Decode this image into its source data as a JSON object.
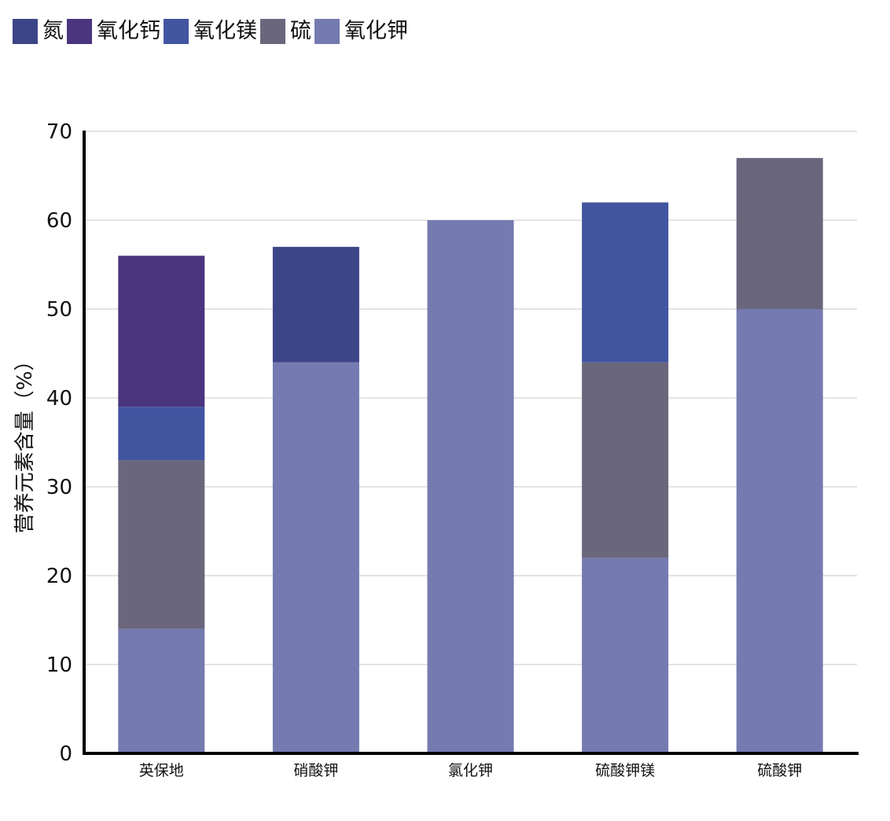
{
  "chart_data": {
    "type": "bar",
    "stacked": true,
    "title": "",
    "xlabel": "",
    "ylabel": "营养元素含量（%）",
    "ylim": [
      0,
      70
    ],
    "yticks": [
      0,
      10,
      20,
      30,
      40,
      50,
      60,
      70
    ],
    "grid": true,
    "legend_position": "top-left",
    "categories": [
      "英保地",
      "硝酸钾",
      "氯化钾",
      "硫酸钾镁",
      "硫酸钾"
    ],
    "series": [
      {
        "name": "氮",
        "color": "#3d4589",
        "values": [
          0,
          13,
          0,
          0,
          0
        ]
      },
      {
        "name": "氧化钙",
        "color": "#4b357f",
        "values": [
          17,
          0,
          0,
          0,
          0
        ]
      },
      {
        "name": "氧化镁",
        "color": "#4255a1",
        "values": [
          6,
          0,
          0,
          18,
          0
        ]
      },
      {
        "name": "硫",
        "color": "#6a677d",
        "values": [
          19,
          0,
          0,
          22,
          17
        ]
      },
      {
        "name": "氧化钾",
        "color": "#757ab0",
        "values": [
          14,
          44,
          60,
          22,
          50
        ]
      }
    ],
    "stack_order": [
      "氧化钾",
      "硫",
      "氧化镁",
      "氧化钙",
      "氮"
    ]
  }
}
